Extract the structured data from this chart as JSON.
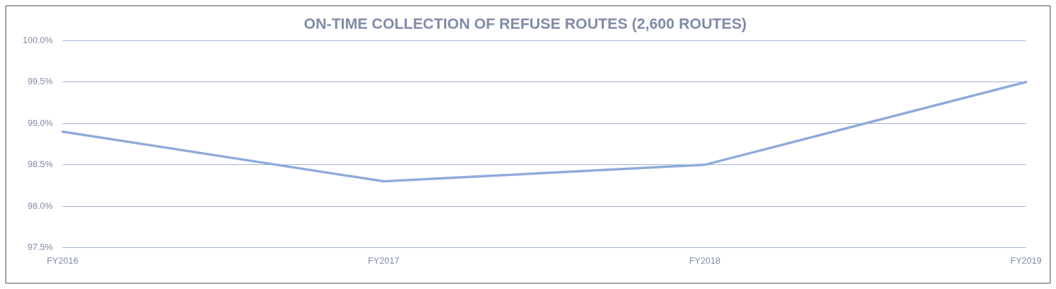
{
  "chart_data": {
    "type": "line",
    "title": "ON-TIME COLLECTION OF REFUSE ROUTES (2,600 ROUTES)",
    "categories": [
      "FY2016",
      "FY2017",
      "FY2018",
      "FY2019"
    ],
    "series": [
      {
        "color": "#8eaadb",
        "values": [
          98.9,
          98.3,
          98.5,
          99.5
        ]
      }
    ],
    "ylim": [
      97.5,
      100
    ],
    "yticks": [
      {
        "value": 97.5,
        "label": "97.5%"
      },
      {
        "value": 98,
        "label": "98.0%"
      },
      {
        "value": 98.5,
        "label": "98.5%"
      },
      {
        "value": 99,
        "label": "99.0%"
      },
      {
        "value": 99.5,
        "label": "99.5%"
      },
      {
        "value": 100,
        "label": "100.0%"
      }
    ],
    "grid": "y",
    "legend": false,
    "marker": "none",
    "line_style": "solid"
  }
}
